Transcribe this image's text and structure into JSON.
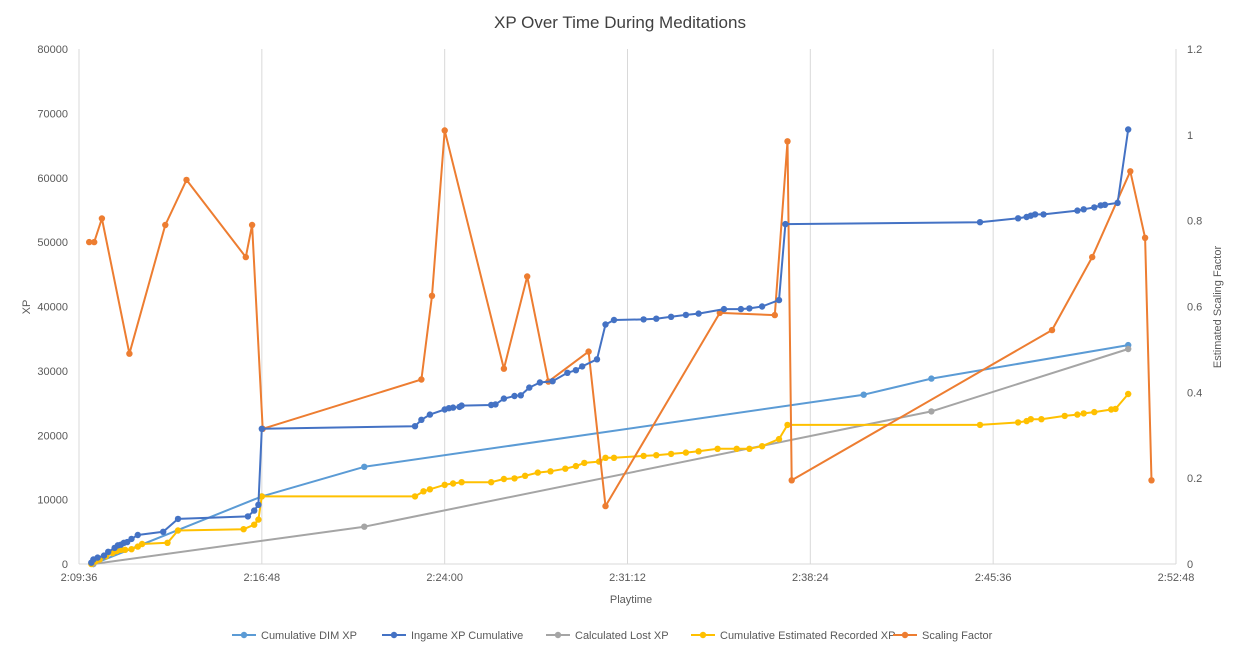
{
  "chart_data": {
    "type": "line",
    "title": "XP Over Time During Meditations",
    "xlabel": "Playtime",
    "ylabel": "XP",
    "y2label": "Estimated Scaling Factor",
    "x_tick_labels": [
      "2:09:36",
      "2:16:48",
      "2:24:00",
      "2:31:12",
      "2:38:24",
      "2:45:36",
      "2:52:48"
    ],
    "xlim": [
      "2:09:36",
      "2:52:48"
    ],
    "ylim": [
      0,
      80000
    ],
    "y_ticks": [
      "0",
      "10000",
      "20000",
      "30000",
      "40000",
      "50000",
      "60000",
      "70000",
      "80000"
    ],
    "y2lim": [
      0,
      1.2
    ],
    "y2_ticks": [
      "0",
      "0.2",
      "0.4",
      "0.6",
      "0.8",
      "1",
      "1.2"
    ],
    "grid": "vertical",
    "legend_position": "bottom",
    "series": [
      {
        "name": "Cumulative DIM XP",
        "color": "#5B9BD5",
        "axis": "left",
        "points": [
          [
            "2:10:10",
            0
          ],
          [
            "2:16:48",
            10500
          ],
          [
            "2:20:50",
            15100
          ],
          [
            "2:40:30",
            26300
          ],
          [
            "2:43:10",
            28800
          ],
          [
            "2:50:55",
            34000
          ]
        ]
      },
      {
        "name": "Ingame XP Cumulative",
        "color": "#4472C4",
        "axis": "left",
        "points": [
          [
            "2:10:05",
            200
          ],
          [
            "2:10:10",
            700
          ],
          [
            "2:10:20",
            1000
          ],
          [
            "2:10:35",
            1300
          ],
          [
            "2:10:45",
            1900
          ],
          [
            "2:11:00",
            2500
          ],
          [
            "2:11:08",
            2900
          ],
          [
            "2:11:15",
            3000
          ],
          [
            "2:11:22",
            3300
          ],
          [
            "2:11:30",
            3400
          ],
          [
            "2:11:40",
            3900
          ],
          [
            "2:11:55",
            4500
          ],
          [
            "2:12:55",
            5000
          ],
          [
            "2:13:30",
            7000
          ],
          [
            "2:16:15",
            7400
          ],
          [
            "2:16:30",
            8300
          ],
          [
            "2:16:40",
            9200
          ],
          [
            "2:16:48",
            21000
          ],
          [
            "2:22:50",
            21400
          ],
          [
            "2:23:05",
            22400
          ],
          [
            "2:23:25",
            23200
          ],
          [
            "2:24:00",
            24000
          ],
          [
            "2:24:10",
            24200
          ],
          [
            "2:24:20",
            24300
          ],
          [
            "2:24:35",
            24400
          ],
          [
            "2:24:40",
            24600
          ],
          [
            "2:25:50",
            24700
          ],
          [
            "2:26:00",
            24800
          ],
          [
            "2:26:20",
            25700
          ],
          [
            "2:26:45",
            26100
          ],
          [
            "2:27:00",
            26200
          ],
          [
            "2:27:20",
            27400
          ],
          [
            "2:27:45",
            28200
          ],
          [
            "2:28:15",
            28400
          ],
          [
            "2:28:50",
            29700
          ],
          [
            "2:29:10",
            30100
          ],
          [
            "2:29:25",
            30700
          ],
          [
            "2:30:00",
            31800
          ],
          [
            "2:30:20",
            37200
          ],
          [
            "2:30:40",
            37900
          ],
          [
            "2:31:50",
            38000
          ],
          [
            "2:32:20",
            38100
          ],
          [
            "2:32:55",
            38400
          ],
          [
            "2:33:30",
            38700
          ],
          [
            "2:34:00",
            38900
          ],
          [
            "2:35:00",
            39600
          ],
          [
            "2:35:40",
            39600
          ],
          [
            "2:36:00",
            39700
          ],
          [
            "2:36:30",
            40000
          ],
          [
            "2:37:10",
            41000
          ],
          [
            "2:37:25",
            52800
          ],
          [
            "2:45:05",
            53100
          ],
          [
            "2:46:35",
            53700
          ],
          [
            "2:46:55",
            53900
          ],
          [
            "2:47:05",
            54100
          ],
          [
            "2:47:15",
            54300
          ],
          [
            "2:47:35",
            54300
          ],
          [
            "2:48:55",
            54900
          ],
          [
            "2:49:10",
            55100
          ],
          [
            "2:49:35",
            55400
          ],
          [
            "2:49:50",
            55700
          ],
          [
            "2:50:00",
            55800
          ],
          [
            "2:50:30",
            56100
          ],
          [
            "2:50:55",
            67500
          ]
        ]
      },
      {
        "name": "Calculated Lost XP",
        "color": "#A5A5A5",
        "axis": "left",
        "points": [
          [
            "2:10:10",
            0
          ],
          [
            "2:20:50",
            5800
          ],
          [
            "2:43:10",
            23700
          ],
          [
            "2:50:55",
            33400
          ]
        ]
      },
      {
        "name": "Cumulative Estimated Recorded XP",
        "color": "#FFC000",
        "axis": "left",
        "points": [
          [
            "2:10:05",
            0
          ],
          [
            "2:10:15",
            400
          ],
          [
            "2:10:25",
            700
          ],
          [
            "2:10:40",
            1200
          ],
          [
            "2:10:55",
            1700
          ],
          [
            "2:11:05",
            2000
          ],
          [
            "2:11:15",
            2200
          ],
          [
            "2:11:25",
            2200
          ],
          [
            "2:11:40",
            2300
          ],
          [
            "2:11:55",
            2700
          ],
          [
            "2:12:05",
            3100
          ],
          [
            "2:13:05",
            3300
          ],
          [
            "2:13:30",
            5200
          ],
          [
            "2:16:05",
            5400
          ],
          [
            "2:16:30",
            6100
          ],
          [
            "2:16:40",
            6900
          ],
          [
            "2:16:48",
            10500
          ],
          [
            "2:22:50",
            10500
          ],
          [
            "2:23:10",
            11300
          ],
          [
            "2:23:25",
            11600
          ],
          [
            "2:24:00",
            12300
          ],
          [
            "2:24:20",
            12500
          ],
          [
            "2:24:40",
            12700
          ],
          [
            "2:25:50",
            12700
          ],
          [
            "2:26:20",
            13200
          ],
          [
            "2:26:45",
            13300
          ],
          [
            "2:27:10",
            13700
          ],
          [
            "2:27:40",
            14200
          ],
          [
            "2:28:10",
            14400
          ],
          [
            "2:28:45",
            14800
          ],
          [
            "2:29:10",
            15200
          ],
          [
            "2:29:30",
            15700
          ],
          [
            "2:30:05",
            15900
          ],
          [
            "2:30:20",
            16500
          ],
          [
            "2:30:40",
            16500
          ],
          [
            "2:31:50",
            16800
          ],
          [
            "2:32:20",
            16900
          ],
          [
            "2:32:55",
            17100
          ],
          [
            "2:33:30",
            17300
          ],
          [
            "2:34:00",
            17500
          ],
          [
            "2:34:45",
            17900
          ],
          [
            "2:35:30",
            17900
          ],
          [
            "2:36:00",
            17900
          ],
          [
            "2:36:30",
            18300
          ],
          [
            "2:37:10",
            19400
          ],
          [
            "2:37:30",
            21600
          ],
          [
            "2:45:05",
            21600
          ],
          [
            "2:46:35",
            22000
          ],
          [
            "2:46:55",
            22200
          ],
          [
            "2:47:05",
            22500
          ],
          [
            "2:47:30",
            22500
          ],
          [
            "2:48:25",
            23000
          ],
          [
            "2:48:55",
            23200
          ],
          [
            "2:49:10",
            23400
          ],
          [
            "2:49:35",
            23600
          ],
          [
            "2:50:15",
            24000
          ],
          [
            "2:50:25",
            24100
          ],
          [
            "2:50:55",
            26400
          ]
        ]
      },
      {
        "name": "Scaling Factor",
        "color": "#ED7D31",
        "axis": "right",
        "points": [
          [
            "2:10:00",
            0.75
          ],
          [
            "2:10:12",
            0.75
          ],
          [
            "2:10:30",
            0.805
          ],
          [
            "2:11:35",
            0.49
          ],
          [
            "2:13:00",
            0.79
          ],
          [
            "2:13:50",
            0.895
          ],
          [
            "2:16:10",
            0.715
          ],
          [
            "2:16:25",
            0.79
          ],
          [
            "2:16:50",
            0.315
          ],
          [
            "2:23:05",
            0.43
          ],
          [
            "2:23:30",
            0.625
          ],
          [
            "2:24:00",
            1.01
          ],
          [
            "2:26:20",
            0.455
          ],
          [
            "2:27:15",
            0.67
          ],
          [
            "2:28:05",
            0.425
          ],
          [
            "2:29:40",
            0.495
          ],
          [
            "2:30:20",
            0.135
          ],
          [
            "2:34:50",
            0.585
          ],
          [
            "2:37:00",
            0.58
          ],
          [
            "2:37:30",
            0.985
          ],
          [
            "2:37:40",
            0.195
          ],
          [
            "2:47:55",
            0.545
          ],
          [
            "2:49:30",
            0.715
          ],
          [
            "2:51:00",
            0.915
          ],
          [
            "2:51:35",
            0.76
          ],
          [
            "2:51:50",
            0.195
          ]
        ]
      }
    ]
  }
}
